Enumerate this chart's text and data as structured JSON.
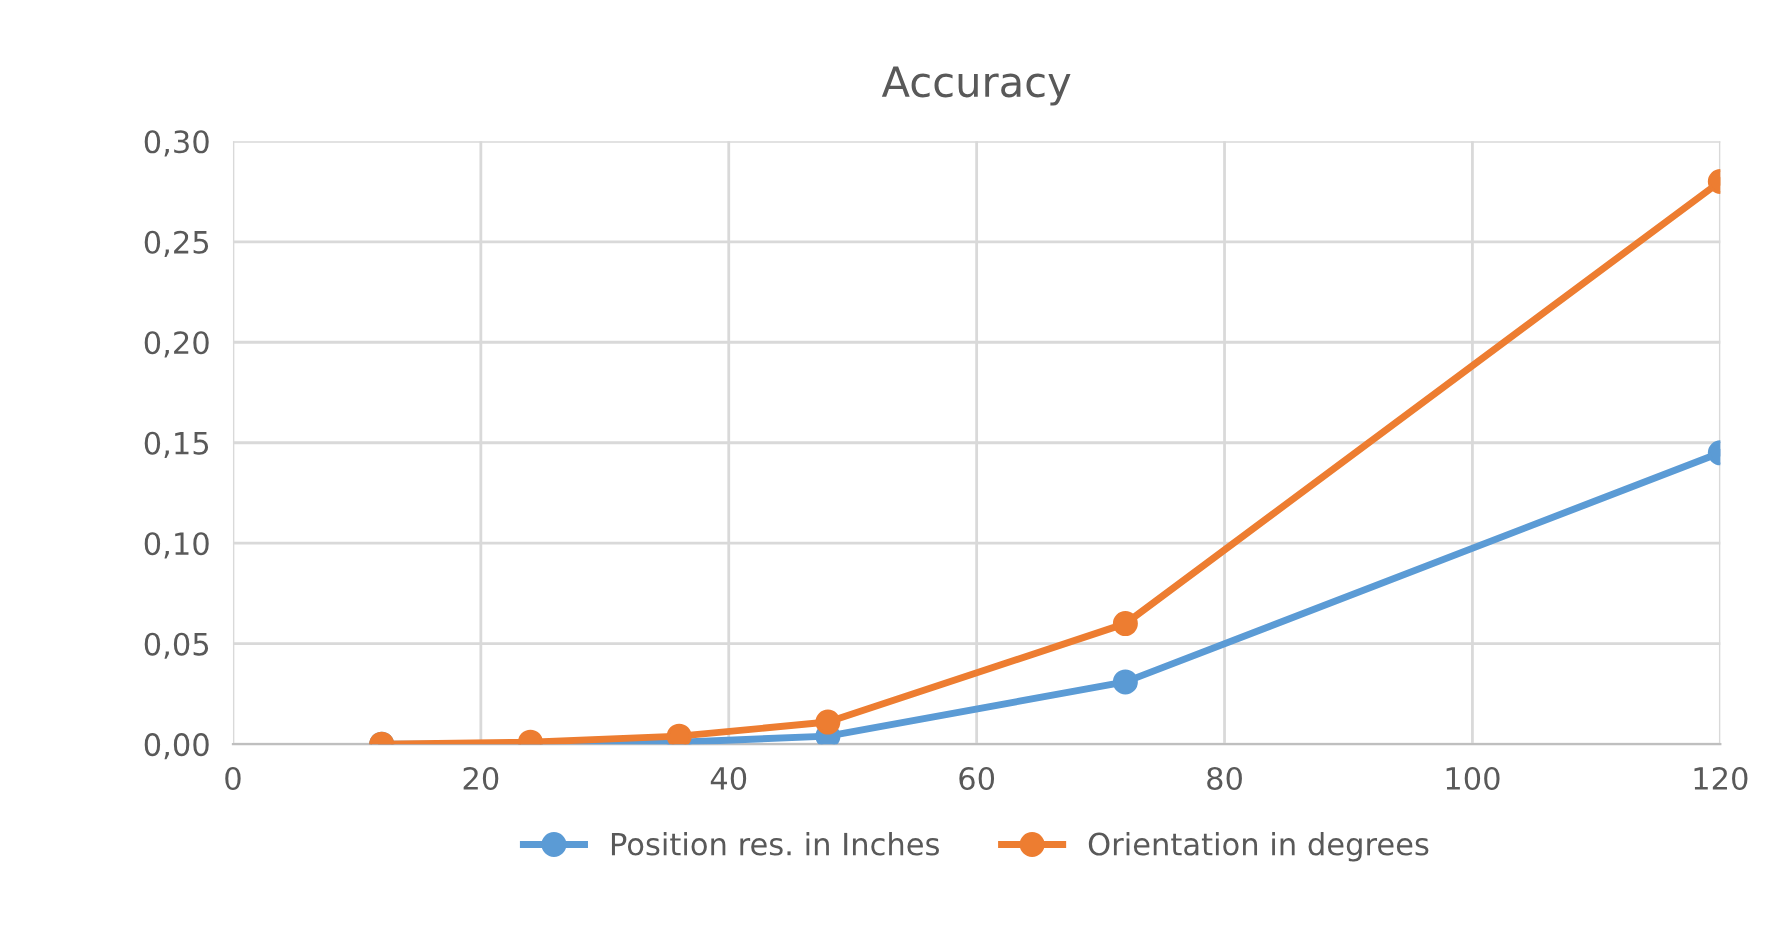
{
  "chart_data": {
    "type": "line",
    "title": "Accuracy",
    "x": [
      12,
      24,
      36,
      48,
      72,
      120
    ],
    "series": [
      {
        "name": "Position res. in Inches",
        "color": "#5b9bd5",
        "values": [
          0.0,
          0.0,
          0.001,
          0.004,
          0.031,
          0.145
        ]
      },
      {
        "name": "Orientation in degrees",
        "color": "#ed7d31",
        "values": [
          0.0,
          0.001,
          0.004,
          0.011,
          0.06,
          0.28
        ]
      }
    ],
    "xlim": [
      0,
      120
    ],
    "xticks": [
      0,
      20,
      40,
      60,
      80,
      100,
      120
    ],
    "ylim": [
      0,
      0.3
    ],
    "yticks": [
      {
        "value": 0,
        "label": "0,00"
      },
      {
        "value": 0.05,
        "label": "0,05"
      },
      {
        "value": 0.1,
        "label": "0,10"
      },
      {
        "value": 0.15,
        "label": "0,15"
      },
      {
        "value": 0.2,
        "label": "0,20"
      },
      {
        "value": 0.25,
        "label": "0,25"
      },
      {
        "value": 0.3,
        "label": "0,30"
      }
    ],
    "grid": true,
    "legend": "bottom",
    "marker": "circle",
    "line_style": "solid"
  }
}
